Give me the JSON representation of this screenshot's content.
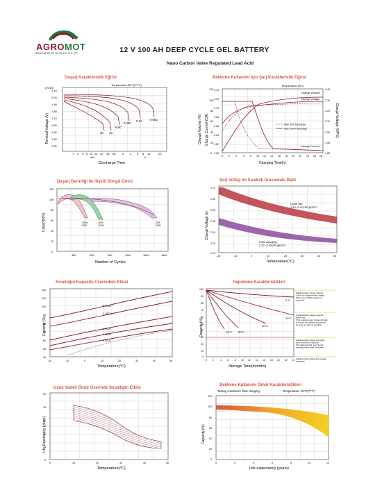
{
  "brand": {
    "name_part1": "AGRO",
    "name_part2": "MOT",
    "tagline": "ORDA ENDÜSTRİ VE DIŞ TİC. LTD. ŞTİ."
  },
  "header": {
    "title": "12 V 100 AH DEEP CYCLE GEL BATTERY",
    "subtitle": "Nano Carbon Valve Regulated Lead Acid"
  },
  "colors": {
    "accent_title": "#d9553f",
    "curve": "#8a1c2b",
    "green": "#1f7a3a"
  },
  "charts": [
    {
      "key": "discharge",
      "title": "Deşarj Karakteristik Eğrisi",
      "chart_data": {
        "type": "line",
        "ylabel": "Terminal Voltage (V)",
        "yunit": "(V/cell)",
        "xlabel": "Discharge Time",
        "note": "Temperature:25°C(77°F)",
        "yticks": [
          "2.10",
          "2.00",
          "1.90",
          "1.80",
          "1.70",
          "1.60",
          "1.50",
          "1.40",
          "1.30"
        ],
        "xticks_min": [
          "1",
          "2",
          "4",
          "6",
          "8",
          "10",
          "20",
          "40",
          "60"
        ],
        "xticks_h": [
          "2",
          "4",
          "6",
          "8",
          "10",
          "20"
        ],
        "x_units": [
          "min",
          "h"
        ],
        "series": [
          {
            "name": "2C"
          },
          {
            "name": "1C"
          },
          {
            "name": "0.5C"
          },
          {
            "name": "0.25C"
          },
          {
            "name": "0.1C"
          },
          {
            "name": "0.05C"
          }
        ]
      }
    },
    {
      "key": "standby_charge",
      "title": "Bekleme Kullanımı İçin Şarj Karakteristik Eğrisi",
      "chart_data": {
        "type": "line",
        "ylabel_left": "Charge Volume (%)",
        "ylabel_mid": "Charge Current (CA)",
        "ylabel_right": "Charge Voltage (V/PC)",
        "xlabel": "Charging Time(h)",
        "note": "Temperature:25°C",
        "y_left": [
          "0",
          "20",
          "40",
          "60",
          "80",
          "100",
          "120"
        ],
        "y_mid": [
          "0.00",
          "0.02",
          "0.04",
          "0.06",
          "0.08",
          "0.10",
          "0.12",
          "0.14"
        ],
        "y_right": [
          "1.80",
          "1.90",
          "2.00",
          "2.10",
          "2.20",
          "2.30",
          "2.40"
        ],
        "xticks": [
          "0",
          "2",
          "4",
          "6",
          "8",
          "10",
          "12",
          "14",
          "16",
          "18",
          "20",
          "22",
          "24",
          "26",
          "28"
        ],
        "series": [
          {
            "name": "Charge Volume"
          },
          {
            "name": "Charge Voltage"
          },
          {
            "name": "Charge Current"
          }
        ],
        "legend": [
          "After 50% Discharge",
          "After 100% Discharge"
        ]
      }
    },
    {
      "key": "cycle_life",
      "title": "Deşarj Derinliği ile İlişkili Döngü Ömrü",
      "chart_data": {
        "type": "area",
        "ylabel": "Capacity(%)",
        "xlabel": "Number of Cycles",
        "yticks": [
          "0",
          "20",
          "40",
          "60",
          "80",
          "100",
          "120"
        ],
        "xticks": [
          "300",
          "600",
          "900",
          "1200",
          "1500",
          "1800"
        ],
        "series": [
          {
            "name": "100% DOD"
          },
          {
            "name": "50% DOD"
          },
          {
            "name": "30% DOD"
          }
        ],
        "labels": [
          [
            "100%",
            "DOD"
          ],
          [
            "50%",
            "DOD"
          ],
          [
            "30%",
            "DOD"
          ]
        ]
      }
    },
    {
      "key": "charge_voltage_temp",
      "title": "Şarj Voltajı ile Sıcaklık Arasındaki İlişki",
      "chart_data": {
        "type": "area",
        "ylabel": "Charge Voltage (v)",
        "xlabel": "Temperature(°C)",
        "yticks": [
          "2.70",
          "2.60",
          "2.50",
          "2.40",
          "2.30",
          "2.20",
          "2.10"
        ],
        "xticks": [
          "-20",
          "-10",
          "0",
          "10",
          "20",
          "30",
          "40",
          "50"
        ],
        "annotations": [
          {
            "line1": "Cycle use",
            "line2": "2.43~2.47VPC@25°C"
          },
          {
            "line1": "Float charging",
            "line2": "2.27~2.30VPC@25°C"
          }
        ]
      }
    },
    {
      "key": "capacity_temp",
      "title": "Sıcaklığın Kapasite Üzerindeki Etkisi",
      "chart_data": {
        "type": "line",
        "ylabel": "Capacity (%)",
        "xlabel": "Temperature(°C)",
        "yticks": [
          "120",
          "110",
          "100",
          "90",
          "80",
          "70",
          "60",
          "50",
          "40"
        ],
        "xticks": [
          "-20",
          "-10",
          "0",
          "10",
          "20",
          "30",
          "40",
          "50"
        ],
        "series": [
          {
            "name": "0.1CA"
          },
          {
            "name": "0.25CA"
          },
          {
            "name": "1.0CA"
          },
          {
            "name": "2.0CA"
          },
          {
            "name": "3.0CA"
          }
        ]
      }
    },
    {
      "key": "storage",
      "title": "Depolama Karakteristikleri",
      "chart_data": {
        "type": "line",
        "ylabel": "Capacity (%)",
        "xlabel": "Storage Time(months)",
        "yticks": [
          "100",
          "90",
          "80",
          "70",
          "60",
          "50",
          "40",
          "30",
          "20",
          "10",
          "0"
        ],
        "xticks": [
          "0",
          "2",
          "4",
          "6",
          "8",
          "10",
          "12",
          "14",
          "16",
          "18",
          "20",
          "22",
          "24"
        ],
        "series": [
          {
            "name": "0°C"
          },
          {
            "name": "10°C"
          },
          {
            "name": "20°C"
          },
          {
            "name": "30°C"
          },
          {
            "name": "40°C"
          }
        ],
        "notes": [
          [
            "Supplementary charge required",
            "(Carry out supplementary charge",
            "before use if 100% capacity is",
            "required)"
          ],
          [
            "Supplementary charge required",
            "before use.",
            "(This supplementary charge will help",
            "to recover the capacity and should",
            "be made as early as possible)"
          ],
          [
            "Supplementary charge may often",
            "fail to recover the capacity.",
            "The battery should never be left",
            "standing till this state is reached"
          ],
          [
            "Supplementary charge and storage",
            "guidelines"
          ]
        ]
      }
    },
    {
      "key": "life_temp",
      "title": "Uzun Vadeli Ömür Üzerinde Sıcaklığın Etkisi",
      "chart_data": {
        "type": "area",
        "ylabel": "Life Expectancy (years)",
        "xlabel": "Temperature(°C)",
        "yticks": [
          "20",
          "16",
          "12",
          "8",
          "4",
          "0"
        ],
        "xticks": [
          "0",
          "10",
          "20",
          "30",
          "40",
          "50"
        ]
      }
    },
    {
      "key": "standby_life",
      "title": "Bekleme Kullanımı Ömür Karakteristikleri",
      "chart_data": {
        "type": "area",
        "ylabel": "Capacity (%)",
        "xlabel": "Life expectancy (years)",
        "note_left": "Testing conditions: float charging",
        "note_right": "Temperature: 25°C(77°F)",
        "yticks": [
          "120",
          "100",
          "80",
          "60",
          "40",
          "20",
          "0"
        ],
        "xticks": [
          "0",
          "2",
          "4",
          "6",
          "8",
          "10",
          "12"
        ]
      }
    }
  ]
}
